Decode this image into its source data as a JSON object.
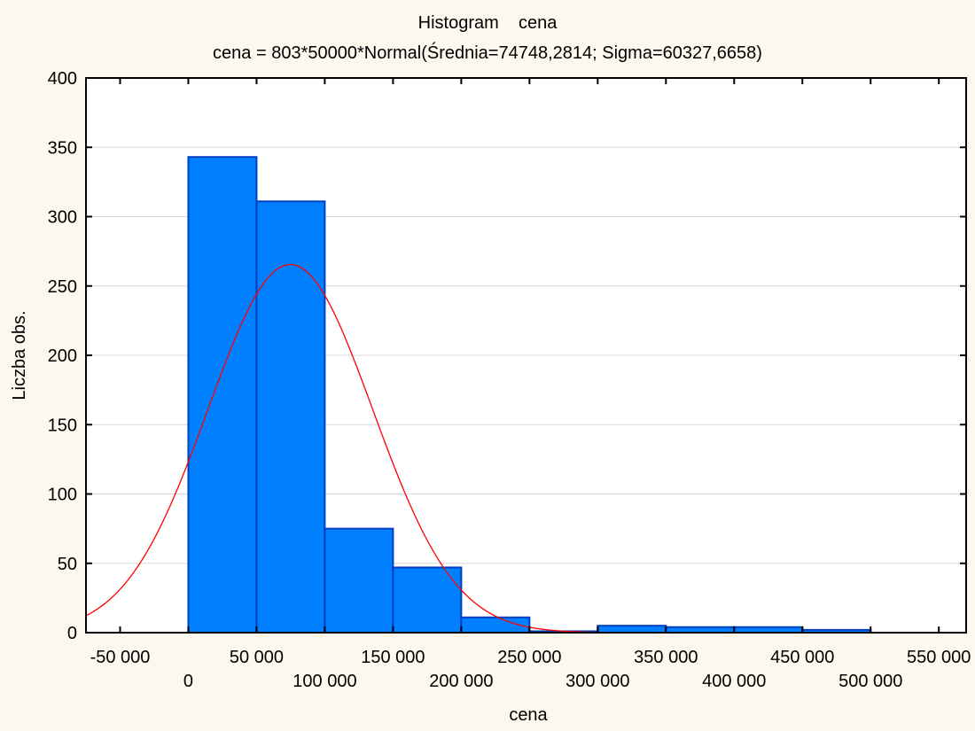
{
  "chart_data": {
    "type": "bar",
    "title": "Histogram    cena",
    "subtitle": "cena = 803*50000*Normal(Średnia=74748,2814; Sigma=60327,6658)",
    "xlabel": "cena",
    "ylabel": "Liczba obs.",
    "xlim": [
      -75000,
      570000
    ],
    "ylim": [
      0,
      400
    ],
    "grid": true,
    "bin_width": 50000,
    "bins": [
      {
        "from": 0,
        "to": 50000,
        "count": 343
      },
      {
        "from": 50000,
        "to": 100000,
        "count": 311
      },
      {
        "from": 100000,
        "to": 150000,
        "count": 75
      },
      {
        "from": 150000,
        "to": 200000,
        "count": 47
      },
      {
        "from": 200000,
        "to": 250000,
        "count": 11
      },
      {
        "from": 250000,
        "to": 300000,
        "count": 1
      },
      {
        "from": 300000,
        "to": 350000,
        "count": 5
      },
      {
        "from": 350000,
        "to": 400000,
        "count": 4
      },
      {
        "from": 400000,
        "to": 450000,
        "count": 4
      },
      {
        "from": 450000,
        "to": 500000,
        "count": 2
      }
    ],
    "fit": {
      "type": "normal",
      "n": 803,
      "bin_width": 50000,
      "mean": 74748.2814,
      "sigma": 60327.6658
    },
    "x_ticks": [
      {
        "value": -50000,
        "label": "-50 000"
      },
      {
        "value": 0,
        "label": "0"
      },
      {
        "value": 50000,
        "label": "50 000"
      },
      {
        "value": 100000,
        "label": "100 000"
      },
      {
        "value": 150000,
        "label": "150 000"
      },
      {
        "value": 200000,
        "label": "200 000"
      },
      {
        "value": 250000,
        "label": "250 000"
      },
      {
        "value": 300000,
        "label": "300 000"
      },
      {
        "value": 350000,
        "label": "350 000"
      },
      {
        "value": 400000,
        "label": "400 000"
      },
      {
        "value": 450000,
        "label": "450 000"
      },
      {
        "value": 500000,
        "label": "500 000"
      },
      {
        "value": 550000,
        "label": "550 000"
      }
    ],
    "y_ticks": [
      0,
      50,
      100,
      150,
      200,
      250,
      300,
      350,
      400
    ],
    "colors": {
      "bar_fill": "#0080ff",
      "bar_edge": "#0040c0",
      "curve": "#ff0000",
      "grid": "#d8d8d8",
      "background": "#fdf8ee"
    }
  }
}
